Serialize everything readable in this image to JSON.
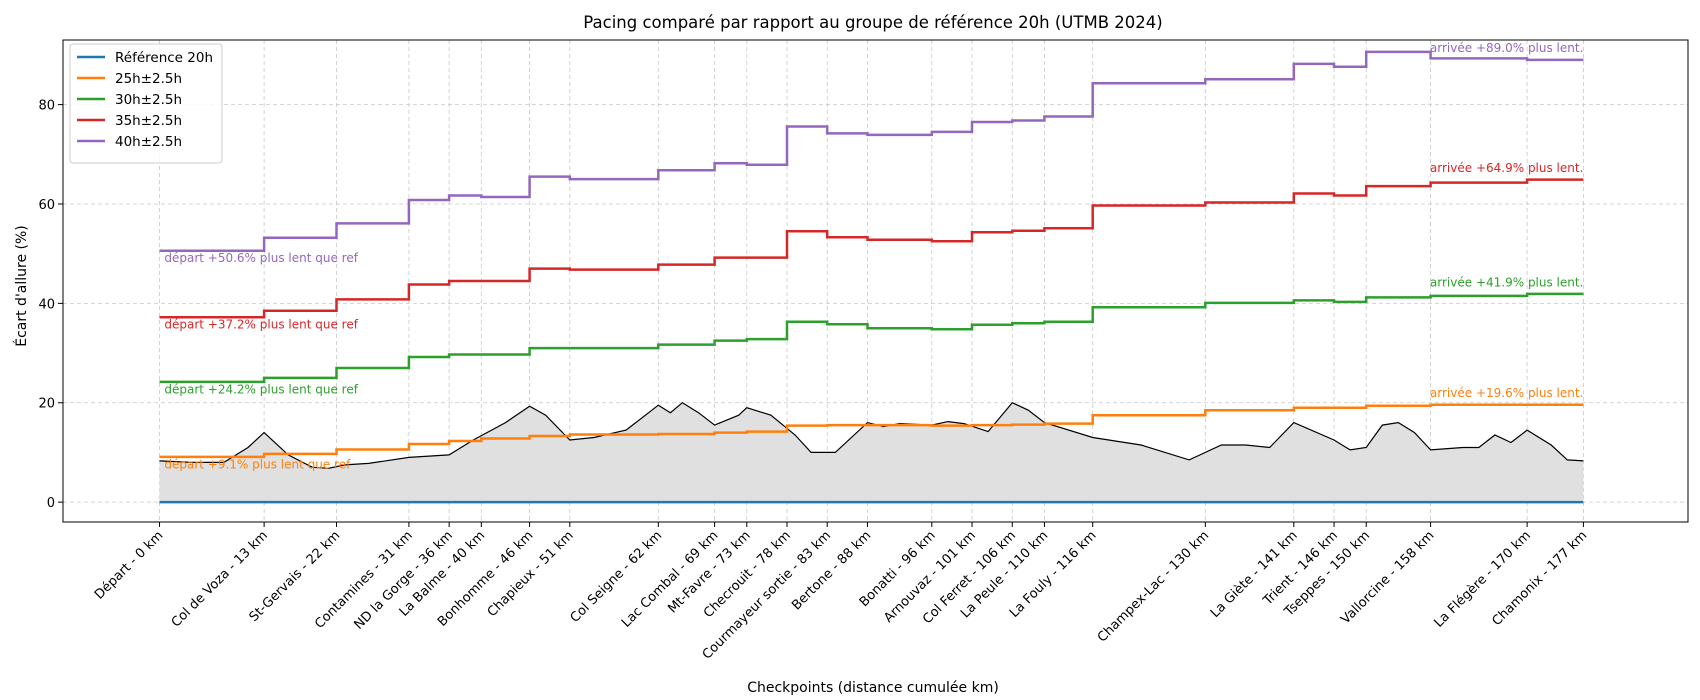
{
  "chart_data": {
    "type": "line",
    "title": "Pacing comparé par rapport au groupe de référence 20h (UTMB 2024)",
    "xlabel": "Checkpoints (distance cumulée km)",
    "ylabel": "Écart d'allure  (%)",
    "ylim": [
      -4,
      93
    ],
    "yticks": [
      0,
      20,
      40,
      60,
      80
    ],
    "xlim": [
      -12,
      190
    ],
    "grid": true,
    "legend_position": "top-left",
    "checkpoint_km": [
      0,
      13,
      22,
      31,
      36,
      40,
      46,
      51,
      62,
      69,
      73,
      78,
      83,
      88,
      96,
      101,
      106,
      110,
      116,
      130,
      141,
      146,
      150,
      158,
      170,
      177
    ],
    "checkpoint_labels": [
      "Départ - 0 km",
      "Col de Voza - 13 km",
      "St-Gervais - 22 km",
      "Contamines - 31 km",
      "ND la Gorge - 36 km",
      "La Balme - 40 km",
      "Bonhomme - 46 km",
      "Chapieux - 51 km",
      "Col Seigne - 62 km",
      "Lac Combal - 69 km",
      "Mt-Favre - 73 km",
      "Checrouit - 78 km",
      "Courmayeur sortie - 83 km",
      "Bertone - 88 km",
      "Bonatti - 96 km",
      "Arnouvaz - 101 km",
      "Col Ferret - 106 km",
      "La Peule - 110 km",
      "La Fouly - 116 km",
      "Champex-Lac - 130 km",
      "La Giète - 141 km",
      "Trient - 146 km",
      "Tseppes - 150 km",
      "Vallorcine - 158 km",
      "La Flégère - 170 km",
      "Chamonix - 177 km"
    ],
    "series": [
      {
        "name": "Référence 20h",
        "color": "#1f77b4",
        "values": [
          0,
          0,
          0,
          0,
          0,
          0,
          0,
          0,
          0,
          0,
          0,
          0,
          0,
          0,
          0,
          0,
          0,
          0,
          0,
          0,
          0,
          0,
          0,
          0,
          0,
          0
        ]
      },
      {
        "name": "25h±2.5h",
        "color": "#ff7f0e",
        "values": [
          9.1,
          9.7,
          10.6,
          11.7,
          12.3,
          12.8,
          13.3,
          13.6,
          13.7,
          14.0,
          14.2,
          15.4,
          15.5,
          15.5,
          15.4,
          15.5,
          15.6,
          15.8,
          17.5,
          18.5,
          19.0,
          19.0,
          19.4,
          19.6,
          19.6,
          19.6
        ]
      },
      {
        "name": "30h±2.5h",
        "color": "#2ca02c",
        "values": [
          24.2,
          25.0,
          27.0,
          29.2,
          29.7,
          29.7,
          31.0,
          31.0,
          31.7,
          32.5,
          32.8,
          36.3,
          35.8,
          35.0,
          34.8,
          35.7,
          36.0,
          36.3,
          39.2,
          40.1,
          40.6,
          40.3,
          41.2,
          41.5,
          41.9,
          41.9
        ]
      },
      {
        "name": "35h±2.5h",
        "color": "#d62728",
        "values": [
          37.2,
          38.5,
          40.8,
          43.8,
          44.5,
          44.5,
          47.0,
          46.8,
          47.8,
          49.2,
          49.2,
          54.5,
          53.3,
          52.8,
          52.5,
          54.3,
          54.6,
          55.1,
          59.7,
          60.3,
          62.1,
          61.7,
          63.6,
          64.3,
          64.9,
          64.9
        ]
      },
      {
        "name": "40h±2.5h",
        "color": "#9467bd",
        "values": [
          50.6,
          53.2,
          56.1,
          60.8,
          61.7,
          61.4,
          65.5,
          65.0,
          66.8,
          68.2,
          67.9,
          75.6,
          74.2,
          73.9,
          74.5,
          76.5,
          76.8,
          77.6,
          84.3,
          85.1,
          88.2,
          87.6,
          90.6,
          89.3,
          89.0,
          89.0
        ]
      }
    ],
    "elevation_profile": {
      "fill": "#e0e0e0",
      "line": "#000000",
      "km": [
        0,
        4,
        8,
        11,
        13,
        16,
        19,
        21,
        23,
        26,
        31,
        36,
        39,
        43,
        46,
        48,
        51,
        54,
        58,
        62,
        63.5,
        65,
        67,
        69,
        72,
        73,
        76,
        79,
        81,
        84,
        88,
        90,
        92,
        96,
        98,
        100,
        103,
        106,
        108,
        110,
        116,
        122,
        128,
        132,
        135,
        138,
        141,
        146,
        148,
        150,
        152,
        154,
        156,
        158,
        162,
        164,
        166,
        168,
        170,
        173,
        175,
        177
      ],
      "profile": [
        8.3,
        8,
        8,
        11,
        14,
        9.5,
        7,
        6.8,
        7.5,
        7.8,
        9,
        9.5,
        12.5,
        16,
        19.3,
        17.5,
        12.5,
        13,
        14.5,
        19.5,
        18,
        20,
        18,
        15.5,
        17.5,
        19,
        17.5,
        13.5,
        10,
        10,
        16,
        15.2,
        15.8,
        15.5,
        16.2,
        15.8,
        14.2,
        20,
        18.5,
        16,
        13,
        11.5,
        8.5,
        11.5,
        11.5,
        11,
        16,
        12.5,
        10.5,
        11,
        15.5,
        16,
        14,
        10.5,
        11,
        11,
        13.5,
        12,
        14.5,
        11.5,
        8.5,
        8.3
      ]
    },
    "annotations": [
      {
        "text": "départ +50.6% plus lent que ref",
        "color": "#9467bd",
        "km": 0.6,
        "y": 48.3,
        "anchor": "start"
      },
      {
        "text": "départ +37.2% plus lent que ref",
        "color": "#d62728",
        "km": 0.6,
        "y": 34.9,
        "anchor": "start"
      },
      {
        "text": "départ +24.2% plus lent que ref",
        "color": "#2ca02c",
        "km": 0.6,
        "y": 21.9,
        "anchor": "start"
      },
      {
        "text": "départ +9.1% plus lent que ref",
        "color": "#ff7f0e",
        "km": 0.6,
        "y": 6.8,
        "anchor": "start"
      },
      {
        "text": "arrivée +89.0% plus lent.",
        "color": "#9467bd",
        "km": 177,
        "y": 90.6,
        "anchor": "end"
      },
      {
        "text": "arrivée +64.9% plus lent.",
        "color": "#d62728",
        "km": 177,
        "y": 66.4,
        "anchor": "end"
      },
      {
        "text": "arrivée +41.9% plus lent.",
        "color": "#2ca02c",
        "km": 177,
        "y": 43.4,
        "anchor": "end"
      },
      {
        "text": "arrivée +19.6% plus lent.",
        "color": "#ff7f0e",
        "km": 177,
        "y": 21.2,
        "anchor": "end"
      }
    ]
  }
}
